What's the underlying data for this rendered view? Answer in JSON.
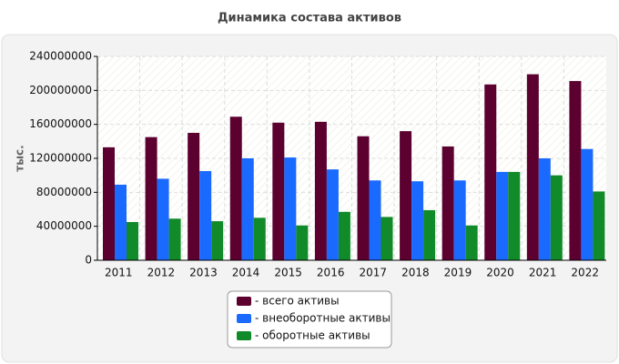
{
  "chart_data": {
    "type": "bar",
    "title": "Динамика состава активов",
    "y_label": "тыс.",
    "categories": [
      "2011",
      "2012",
      "2013",
      "2014",
      "2015",
      "2016",
      "2017",
      "2018",
      "2019",
      "2020",
      "2021",
      "2022"
    ],
    "series": [
      {
        "name": "- всего активы",
        "color": "#5c0030",
        "values": [
          133000000,
          145000000,
          150000000,
          169000000,
          162000000,
          163000000,
          146000000,
          152000000,
          134000000,
          207000000,
          219000000,
          211000000
        ]
      },
      {
        "name": "- внеоборотные активы",
        "color": "#1a6aff",
        "values": [
          89000000,
          96000000,
          105000000,
          120000000,
          121000000,
          107000000,
          94000000,
          93000000,
          94000000,
          104000000,
          120000000,
          131000000
        ]
      },
      {
        "name": "- оборотные активы",
        "color": "#118a2a",
        "values": [
          45000000,
          49000000,
          46000000,
          50000000,
          41000000,
          57000000,
          51000000,
          59000000,
          41000000,
          104000000,
          100000000,
          81000000
        ]
      }
    ],
    "ylim": [
      0,
      240000000
    ],
    "yticks": [
      0,
      40000000,
      80000000,
      120000000,
      160000000,
      200000000,
      240000000
    ],
    "grid": true
  }
}
